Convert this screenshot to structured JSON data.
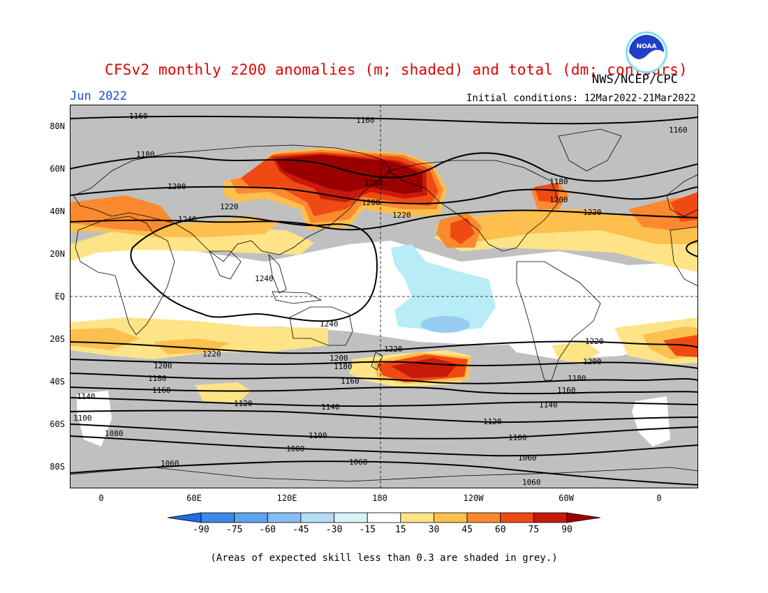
{
  "header": {
    "title": "CFSv2 monthly z200 anomalies (m; shaded) and total (dm; contours)",
    "agency": "NWS/NCEP/CPC",
    "month": "Jun 2022",
    "initial_conditions": "Initial conditions: 12Mar2022-21Mar2022"
  },
  "logo": {
    "text": "NOAA",
    "icon": "noaa-logo"
  },
  "footnote": "(Areas of expected skill less than 0.3 are shaded in grey.)",
  "map": {
    "lat_labels": [
      "80N",
      "60N",
      "40N",
      "20N",
      "EQ",
      "20S",
      "40S",
      "60S",
      "80S"
    ],
    "lon_labels": [
      "0",
      "60E",
      "120E",
      "180",
      "120W",
      "60W",
      "0"
    ],
    "colors": {
      "grey_low_skill": "#c0c0c0",
      "neutral": "#ffffff",
      "pos_15_30": "#fee487",
      "pos_30_45": "#fdbf4e",
      "pos_45_60": "#fb8a2e",
      "pos_60_75": "#f04a14",
      "pos_75_90": "#c81a0a",
      "pos_90": "#9a0000",
      "neg_15_30": "#b8ecf6",
      "neg_30_45": "#96ccf2"
    },
    "contour_labels": [
      {
        "value": "1160"
      },
      {
        "value": "1160"
      },
      {
        "value": "1160"
      },
      {
        "value": "1180"
      },
      {
        "value": "1180"
      },
      {
        "value": "1180"
      },
      {
        "value": "1200"
      },
      {
        "value": "1200"
      },
      {
        "value": "1200"
      },
      {
        "value": "1220"
      },
      {
        "value": "1220"
      },
      {
        "value": "1220"
      },
      {
        "value": "1240"
      },
      {
        "value": "1240"
      },
      {
        "value": "1240"
      },
      {
        "value": "1220"
      },
      {
        "value": "1220"
      },
      {
        "value": "1220"
      },
      {
        "value": "1200"
      },
      {
        "value": "1200"
      },
      {
        "value": "1200"
      },
      {
        "value": "1180"
      },
      {
        "value": "1180"
      },
      {
        "value": "1180"
      },
      {
        "value": "1160"
      },
      {
        "value": "1160"
      },
      {
        "value": "1160"
      },
      {
        "value": "1140"
      },
      {
        "value": "1140"
      },
      {
        "value": "1140"
      },
      {
        "value": "1120"
      },
      {
        "value": "1120"
      },
      {
        "value": "1100"
      },
      {
        "value": "1100"
      },
      {
        "value": "1100"
      },
      {
        "value": "1080"
      },
      {
        "value": "1080"
      },
      {
        "value": "1060"
      },
      {
        "value": "1060"
      },
      {
        "value": "1060"
      },
      {
        "value": "1060"
      }
    ]
  },
  "colorbar": {
    "labels": [
      "-90",
      "-75",
      "-60",
      "-45",
      "-30",
      "-15",
      "15",
      "30",
      "45",
      "60",
      "75",
      "90"
    ],
    "colors": [
      "#1e6fe0",
      "#3b88e8",
      "#5ea2ee",
      "#86bdf3",
      "#b3dcf7",
      "#d6f4f8",
      "#ffffff",
      "#fee487",
      "#fdbf4e",
      "#fb8a2e",
      "#f04a14",
      "#c81a0a",
      "#9a0000"
    ]
  }
}
